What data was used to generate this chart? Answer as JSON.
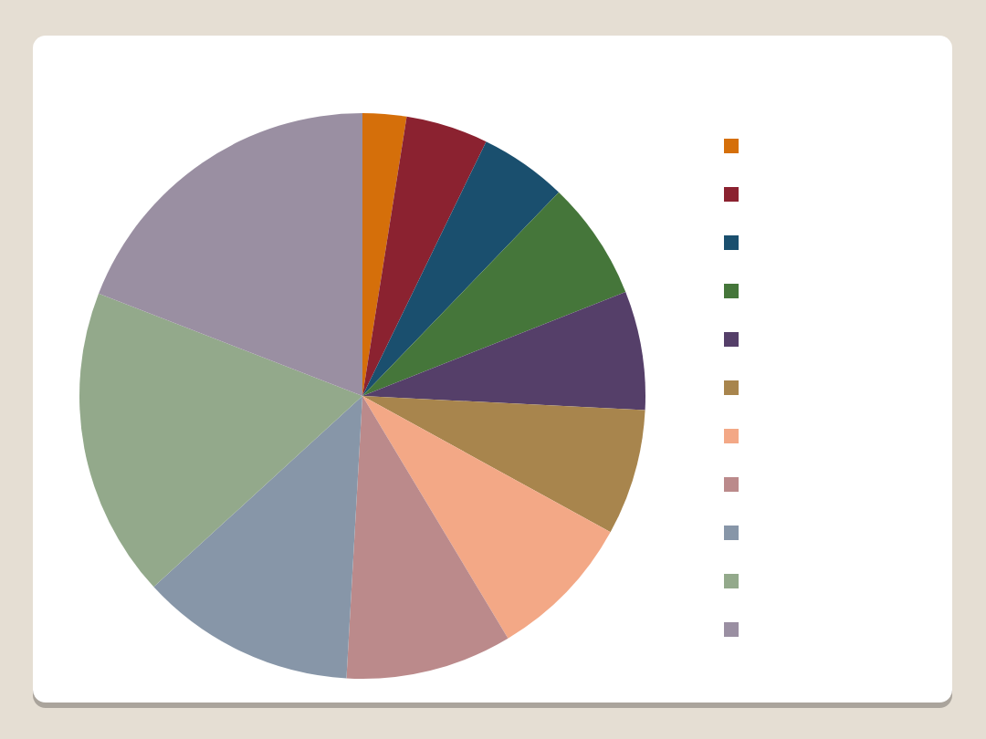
{
  "chart_data": {
    "type": "pie",
    "categories": [
      null,
      null,
      null,
      null,
      null,
      null,
      null,
      null,
      null,
      null,
      null
    ],
    "values": [
      2.5,
      4.7,
      5.0,
      6.8,
      6.8,
      7.2,
      8.4,
      9.5,
      12.3,
      17.7,
      19.1
    ],
    "colors": [
      "#d56f0a",
      "#8b2230",
      "#1a4f6e",
      "#45763a",
      "#553f69",
      "#a8854d",
      "#f3a886",
      "#bb8a8b",
      "#8796a8",
      "#93a98b",
      "#9a8fa2"
    ]
  }
}
